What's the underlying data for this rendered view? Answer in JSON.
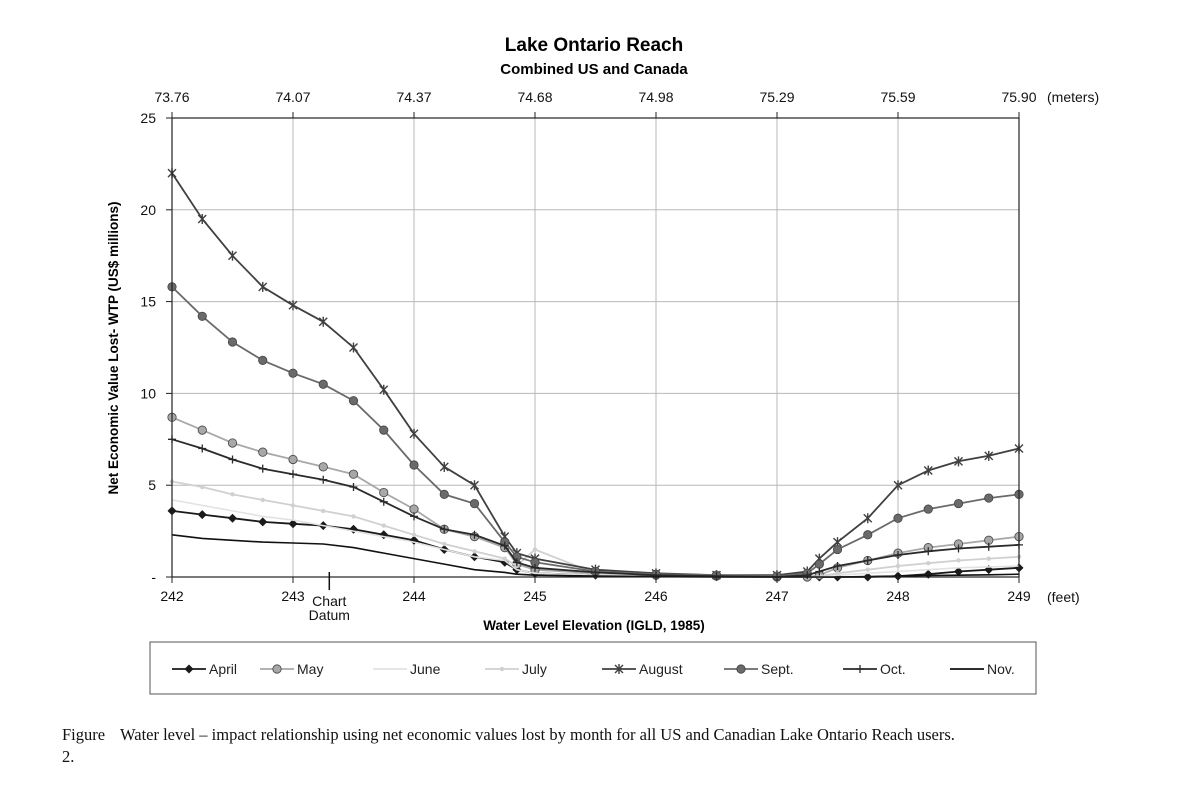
{
  "chart_data": {
    "type": "line",
    "title": "Lake Ontario Reach",
    "subtitle": "Combined US and Canada",
    "xlabel": "Water Level Elevation (IGLD, 1985)",
    "ylabel": "Net Economic Value Lost- WTP (US$ millions)",
    "x_unit": "(feet)",
    "x2_unit": "(meters)",
    "xlim": [
      242,
      249
    ],
    "ylim": [
      0,
      25
    ],
    "x_ticks": [
      "242",
      "243",
      "244",
      "245",
      "246",
      "247",
      "248",
      "249"
    ],
    "x2_ticks": [
      "73.76",
      "74.07",
      "74.37",
      "74.68",
      "74.98",
      "75.29",
      "75.59",
      "75.90"
    ],
    "y_ticks": [
      "-",
      "5",
      "10",
      "15",
      "20",
      "25"
    ],
    "y_tick_values": [
      0,
      5,
      10,
      15,
      20,
      25
    ],
    "grid": true,
    "annotation": {
      "text_line1": "Chart",
      "text_line2": "Datum",
      "x": 243.3
    },
    "legend_position": "bottom",
    "x": [
      242.0,
      242.25,
      242.5,
      242.75,
      243.0,
      243.25,
      243.5,
      243.75,
      244.0,
      244.25,
      244.5,
      244.75,
      244.85,
      245.0,
      245.5,
      246.0,
      246.5,
      247.0,
      247.25,
      247.35,
      247.5,
      247.75,
      248.0,
      248.25,
      248.5,
      248.75,
      249.0
    ],
    "series": [
      {
        "name": "April",
        "color": "#1a1a1a",
        "marker": "diamond",
        "values": [
          3.6,
          3.4,
          3.2,
          3.0,
          2.9,
          2.8,
          2.6,
          2.3,
          2.0,
          1.5,
          1.1,
          0.8,
          0.4,
          0.2,
          0.1,
          0.05,
          0.02,
          0.0,
          0.0,
          0.0,
          0.0,
          0.0,
          0.05,
          0.15,
          0.3,
          0.4,
          0.5
        ]
      },
      {
        "name": "May",
        "color": "#a8a8a8",
        "marker": "circle",
        "values": [
          8.7,
          8.0,
          7.3,
          6.8,
          6.4,
          6.0,
          5.6,
          4.6,
          3.7,
          2.6,
          2.2,
          1.6,
          0.7,
          0.4,
          0.2,
          0.1,
          0.05,
          0.0,
          0.0,
          0.1,
          0.5,
          0.9,
          1.3,
          1.6,
          1.8,
          2.0,
          2.2
        ]
      },
      {
        "name": "June",
        "color": "#e2e2e2",
        "marker": "none",
        "values": [
          4.2,
          3.9,
          3.6,
          3.3,
          3.1,
          2.8,
          2.5,
          2.2,
          1.9,
          1.5,
          1.1,
          0.9,
          0.4,
          0.2,
          0.1,
          0.05,
          0.02,
          0.0,
          0.0,
          0.0,
          0.1,
          0.2,
          0.3,
          0.4,
          0.5,
          0.55,
          0.6
        ]
      },
      {
        "name": "July",
        "color": "#d0d0d0",
        "marker": "dot",
        "values": [
          5.2,
          4.9,
          4.5,
          4.2,
          3.9,
          3.6,
          3.3,
          2.8,
          2.3,
          1.8,
          1.4,
          1.0,
          0.6,
          1.5,
          0.2,
          0.1,
          0.05,
          0.0,
          0.0,
          0.05,
          0.2,
          0.4,
          0.6,
          0.75,
          0.9,
          1.0,
          1.1
        ]
      },
      {
        "name": "August",
        "color": "#404040",
        "marker": "asterisk",
        "values": [
          22.0,
          19.5,
          17.5,
          15.8,
          14.8,
          13.9,
          12.5,
          10.2,
          7.8,
          6.0,
          5.0,
          2.2,
          1.3,
          1.0,
          0.4,
          0.2,
          0.1,
          0.1,
          0.3,
          1.0,
          1.9,
          3.2,
          5.0,
          5.8,
          6.3,
          6.6,
          7.0
        ]
      },
      {
        "name": "Sept.",
        "color": "#6a6a6a",
        "marker": "circle",
        "values": [
          15.8,
          14.2,
          12.8,
          11.8,
          11.1,
          10.5,
          9.6,
          8.0,
          6.1,
          4.5,
          4.0,
          1.9,
          1.1,
          0.8,
          0.3,
          0.15,
          0.1,
          0.05,
          0.2,
          0.7,
          1.5,
          2.3,
          3.2,
          3.7,
          4.0,
          4.3,
          4.5
        ]
      },
      {
        "name": "Oct.",
        "color": "#2a2a2a",
        "marker": "plus",
        "values": [
          7.5,
          7.0,
          6.4,
          5.9,
          5.6,
          5.3,
          4.9,
          4.1,
          3.3,
          2.6,
          2.3,
          1.7,
          0.8,
          0.5,
          0.25,
          0.1,
          0.05,
          0.0,
          0.1,
          0.3,
          0.6,
          0.9,
          1.2,
          1.4,
          1.55,
          1.65,
          1.75
        ]
      },
      {
        "name": "Nov.",
        "color": "#111111",
        "marker": "none",
        "values": [
          2.3,
          2.1,
          2.0,
          1.9,
          1.85,
          1.8,
          1.6,
          1.3,
          1.0,
          0.7,
          0.4,
          0.25,
          0.15,
          0.1,
          0.05,
          0.02,
          0.0,
          0.0,
          0.0,
          0.0,
          0.0,
          0.02,
          0.05,
          0.08,
          0.1,
          0.12,
          0.15
        ]
      }
    ]
  },
  "caption": {
    "figure_label": "Figure 2.",
    "text": "Water level – impact relationship using net economic values lost by month for all US and Canadian Lake Ontario Reach users."
  }
}
